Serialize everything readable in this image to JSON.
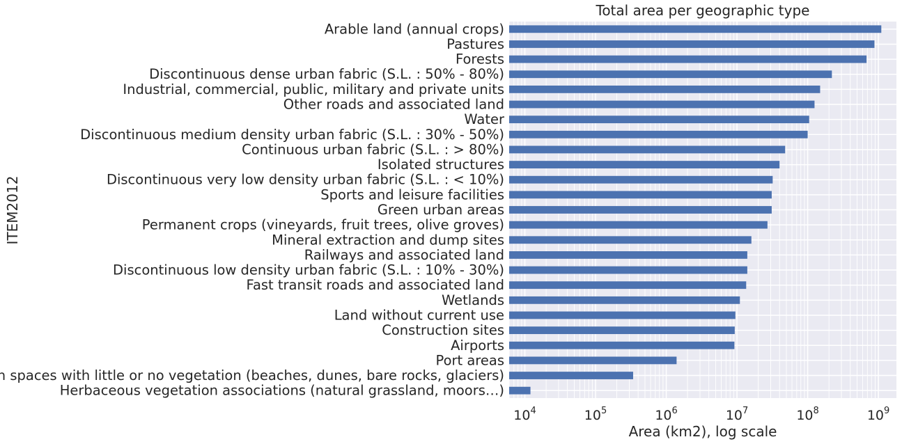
{
  "chart_data": {
    "type": "bar",
    "orientation": "horizontal",
    "title": "Total area per geographic type",
    "xlabel": "Area (km2), log scale",
    "ylabel": "ITEM2012",
    "xscale": "log",
    "xlim": [
      6000,
      1800000000
    ],
    "xticks": [
      {
        "value": 10000,
        "base": "10",
        "exp": "4"
      },
      {
        "value": 100000,
        "base": "10",
        "exp": "5"
      },
      {
        "value": 1000000,
        "base": "10",
        "exp": "6"
      },
      {
        "value": 10000000,
        "base": "10",
        "exp": "7"
      },
      {
        "value": 100000000,
        "base": "10",
        "exp": "8"
      },
      {
        "value": 1000000000,
        "base": "10",
        "exp": "9"
      }
    ],
    "grid": true,
    "background": "#eaeaf2",
    "bar_color": "#4c72b0",
    "categories": [
      "Arable land (annual crops)",
      "Pastures",
      "Forests",
      "Discontinuous dense urban fabric (S.L. : 50% -  80%)",
      "Industrial, commercial, public, military and private units",
      "Other roads and associated land",
      "Water",
      "Discontinuous medium density urban fabric (S.L. : 30% - 50%)",
      "Continuous urban fabric (S.L. : > 80%)",
      "Isolated structures",
      "Discontinuous very low density urban fabric (S.L. : < 10%)",
      "Sports and leisure facilities",
      "Green urban areas",
      "Permanent crops (vineyards, fruit trees, olive groves)",
      "Mineral extraction and dump sites",
      "Railways and associated land",
      "Discontinuous low density urban fabric (S.L. : 10% - 30%)",
      "Fast transit roads and associated land",
      "Wetlands",
      "Land without current use",
      "Construction sites",
      "Airports",
      "Port areas",
      "Open spaces with little or no vegetation (beaches, dunes, bare rocks, glaciers)",
      "Herbaceous vegetation associations (natural grassland, moors…)"
    ],
    "values": [
      1100000000,
      880000000,
      680000000,
      220000000,
      150000000,
      125000000,
      105000000,
      100000000,
      48000000,
      40000000,
      32000000,
      31000000,
      31000000,
      27000000,
      16000000,
      14000000,
      14000000,
      13500000,
      11000000,
      9500000,
      9300000,
      9200000,
      1400000,
      340000,
      12000
    ]
  }
}
